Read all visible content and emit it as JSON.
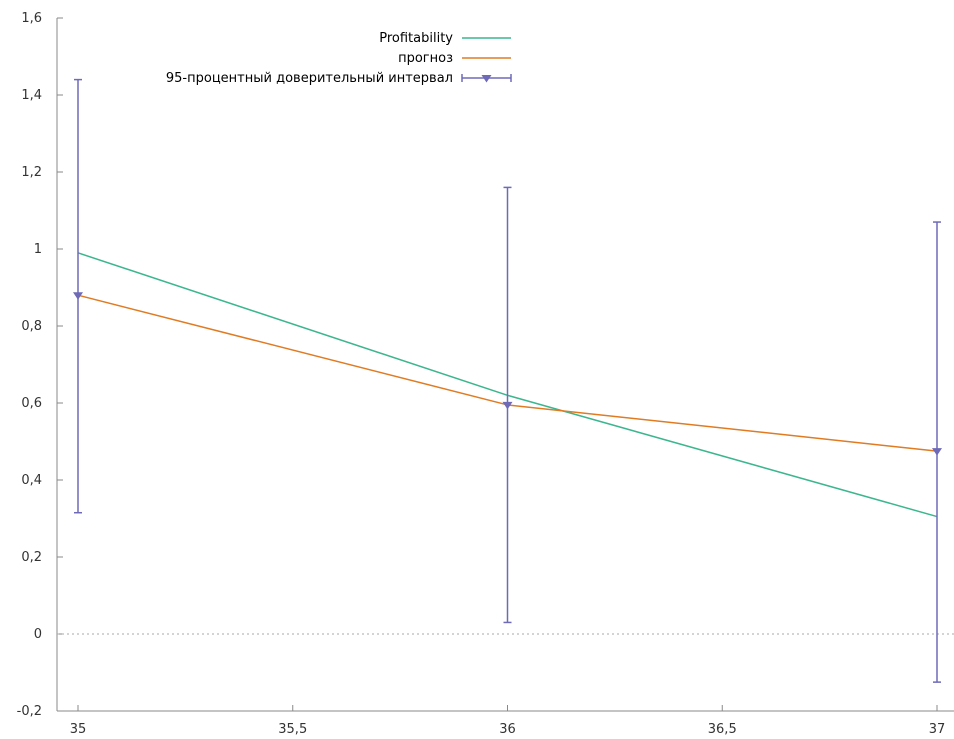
{
  "chart_data": {
    "type": "line",
    "title": "",
    "xlabel": "",
    "ylabel": "",
    "xlim": [
      35,
      37
    ],
    "ylim": [
      -0.2,
      1.6
    ],
    "x_ticks": [
      35,
      35.5,
      36,
      36.5,
      37
    ],
    "x_tick_labels": [
      "35",
      "35,5",
      "36",
      "36,5",
      "37"
    ],
    "y_ticks": [
      -0.2,
      0,
      0.2,
      0.4,
      0.6,
      0.8,
      1,
      1.2,
      1.4,
      1.6
    ],
    "y_tick_labels": [
      "-0,2",
      "0",
      "0,2",
      "0,4",
      "0,6",
      "0,8",
      "1",
      "1,2",
      "1,4",
      "1,6"
    ],
    "grid": false,
    "zero_line": true,
    "legend_position": "top-center",
    "series": [
      {
        "name": "Profitability",
        "type": "line",
        "color": "#3cb68f",
        "x": [
          35,
          36,
          37
        ],
        "y": [
          0.99,
          0.62,
          0.305
        ]
      },
      {
        "name": "прогноз",
        "type": "line",
        "color": "#e07b22",
        "x": [
          35,
          36,
          37
        ],
        "y": [
          0.88,
          0.595,
          0.475
        ]
      },
      {
        "name": "95-процентный доверительный интервал",
        "type": "errorbar",
        "color": "#6e6ab8",
        "marker": "triangle-down",
        "x": [
          35,
          36,
          37
        ],
        "y": [
          0.88,
          0.595,
          0.475
        ],
        "lower": [
          0.315,
          0.03,
          -0.125
        ],
        "upper": [
          1.44,
          1.16,
          1.07
        ]
      }
    ]
  }
}
